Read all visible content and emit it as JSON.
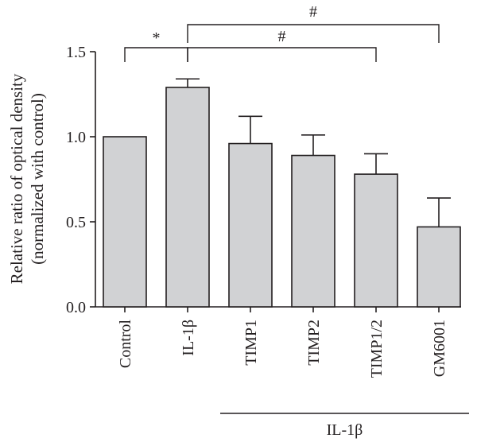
{
  "chart_data": {
    "type": "bar",
    "title": "",
    "xlabel": "",
    "ylabel_line1": "Relative ratio of optical density",
    "ylabel_line2": "(normalized with control)",
    "categories": [
      "Control",
      "IL-1β",
      "TIMP1",
      "TIMP2",
      "TIMP1/2",
      "GM6001"
    ],
    "values": [
      1.0,
      1.29,
      0.96,
      0.89,
      0.78,
      0.47
    ],
    "errors": [
      0.0,
      0.05,
      0.16,
      0.12,
      0.12,
      0.17
    ],
    "ylim": [
      0,
      1.5
    ],
    "yticks": [
      {
        "value": 0.0,
        "label": "0.0"
      },
      {
        "value": 0.5,
        "label": "0.5"
      },
      {
        "value": 1.0,
        "label": "1.0"
      },
      {
        "value": 1.5,
        "label": "1.5"
      }
    ],
    "significance": [
      {
        "from": 0,
        "to": 1,
        "label": "*"
      },
      {
        "from": 1,
        "to": 4,
        "label": "#"
      },
      {
        "from": 1,
        "to": 5,
        "label": "#"
      }
    ],
    "group_label": {
      "text": "IL-1β",
      "from": 2,
      "to": 5
    },
    "grid": false,
    "bar_color": "#d1d2d4",
    "ink_color": "#231f20"
  }
}
